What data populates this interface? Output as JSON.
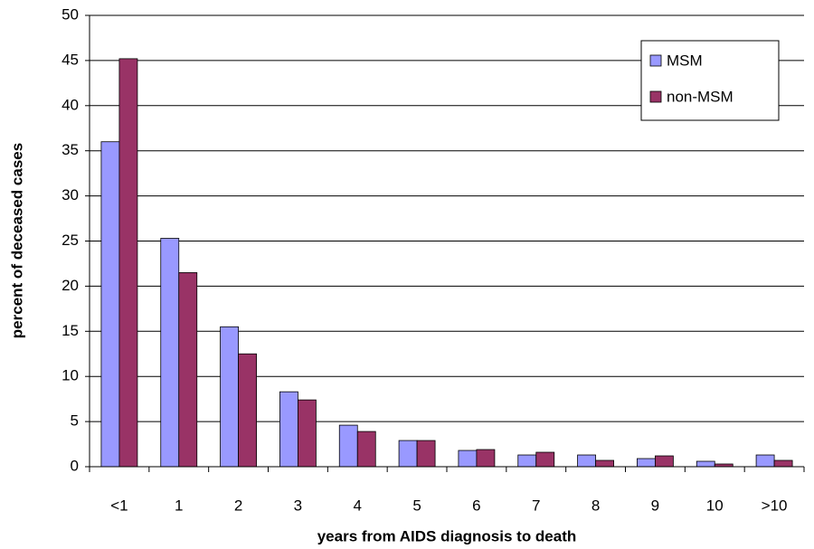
{
  "chart_data": {
    "type": "bar",
    "x_label": "years from AIDS diagnosis to death",
    "y_label": "percent of deceased cases",
    "categories": [
      "<1",
      "1",
      "2",
      "3",
      "4",
      "5",
      "6",
      "7",
      "8",
      "9",
      "10",
      ">10"
    ],
    "series": [
      {
        "name": "MSM",
        "color": "#9999ff",
        "values": [
          36.0,
          25.3,
          15.5,
          8.3,
          4.6,
          2.9,
          1.8,
          1.3,
          1.3,
          0.9,
          0.6,
          1.3
        ]
      },
      {
        "name": "non-MSM",
        "color": "#993366",
        "values": [
          45.2,
          21.5,
          12.5,
          7.4,
          3.9,
          2.9,
          1.9,
          1.6,
          0.7,
          1.2,
          0.3,
          0.7
        ]
      }
    ],
    "ylim": [
      0,
      50
    ],
    "yticks": [
      0,
      5,
      10,
      15,
      20,
      25,
      30,
      35,
      40,
      45,
      50
    ],
    "grid": true,
    "legend": "upper right"
  }
}
